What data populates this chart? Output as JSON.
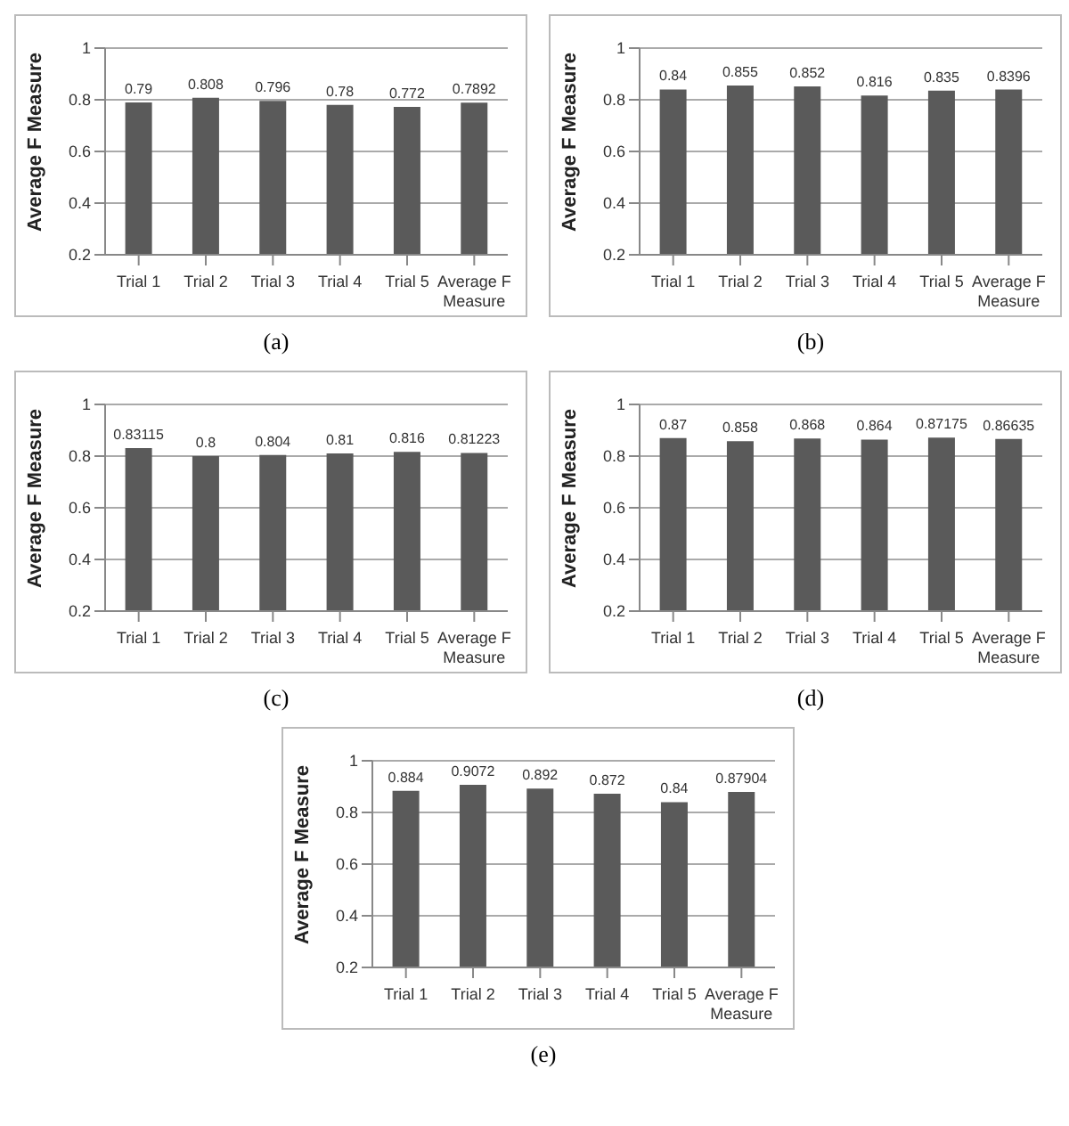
{
  "chart_data": [
    {
      "type": "bar",
      "categories": [
        "Trial 1",
        "Trial 2",
        "Trial 3",
        "Trial 4",
        "Trial 5",
        "Average F Measure"
      ],
      "values": [
        0.79,
        0.808,
        0.796,
        0.78,
        0.772,
        0.7892
      ],
      "color": "#5a5a5a",
      "ylabel": "Average F Measure",
      "ylim": [
        0.2,
        1
      ],
      "yticks": [
        0.2,
        0.4,
        0.6,
        0.8,
        1
      ],
      "grid": "y",
      "data_labels": true,
      "annotations": [
        "(a)"
      ]
    },
    {
      "type": "bar",
      "categories": [
        "Trial 1",
        "Trial 2",
        "Trial 3",
        "Trial 4",
        "Trial 5",
        "Average F Measure"
      ],
      "values": [
        0.84,
        0.855,
        0.852,
        0.816,
        0.835,
        0.8396
      ],
      "color": "#5a5a5a",
      "ylabel": "Average F Measure",
      "ylim": [
        0.2,
        1
      ],
      "yticks": [
        0.2,
        0.4,
        0.6,
        0.8,
        1
      ],
      "grid": "y",
      "data_labels": true,
      "annotations": [
        "(b)"
      ]
    },
    {
      "type": "bar",
      "categories": [
        "Trial 1",
        "Trial 2",
        "Trial 3",
        "Trial 4",
        "Trial 5",
        "Average F Measure"
      ],
      "values": [
        0.83115,
        0.8,
        0.804,
        0.81,
        0.816,
        0.81223
      ],
      "color": "#5a5a5a",
      "ylabel": "Average F Measure",
      "ylim": [
        0.2,
        1
      ],
      "yticks": [
        0.2,
        0.4,
        0.6,
        0.8,
        1
      ],
      "grid": "y",
      "data_labels": true,
      "annotations": [
        "(c)"
      ]
    },
    {
      "type": "bar",
      "categories": [
        "Trial 1",
        "Trial 2",
        "Trial 3",
        "Trial 4",
        "Trial 5",
        "Average F Measure"
      ],
      "values": [
        0.87,
        0.858,
        0.868,
        0.864,
        0.87175,
        0.86635
      ],
      "color": "#5a5a5a",
      "ylabel": "Average F Measure",
      "ylim": [
        0.2,
        1
      ],
      "yticks": [
        0.2,
        0.4,
        0.6,
        0.8,
        1
      ],
      "grid": "y",
      "data_labels": true,
      "annotations": [
        "(d)"
      ]
    },
    {
      "type": "bar",
      "categories": [
        "Trial 1",
        "Trial 2",
        "Trial 3",
        "Trial 4",
        "Trial 5",
        "Average F Measure"
      ],
      "values": [
        0.884,
        0.9072,
        0.892,
        0.872,
        0.84,
        0.87904
      ],
      "color": "#5a5a5a",
      "ylabel": "Average F Measure",
      "ylim": [
        0.2,
        1
      ],
      "yticks": [
        0.2,
        0.4,
        0.6,
        0.8,
        1
      ],
      "grid": "y",
      "data_labels": true,
      "annotations": [
        "(e)"
      ]
    }
  ]
}
